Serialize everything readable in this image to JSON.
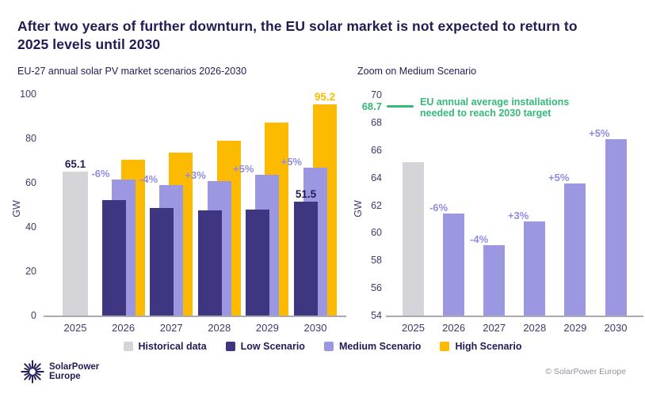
{
  "page": {
    "title": "After two years of further downturn, the EU solar market is not expected to return to 2025 levels until 2030",
    "footer_copyright": "© SolarPower Europe",
    "logo_text_line1": "SolarPower",
    "logo_text_line2": "Europe"
  },
  "colors": {
    "navy_text": "#201c54",
    "historical": "#d5d4d8",
    "low": "#3e3680",
    "medium": "#9b97e0",
    "high": "#fcba00",
    "green": "#35b878",
    "pct_label": "#8f8ce2",
    "axis_line": "#a9aab4",
    "tick_text": "#3d3a6a",
    "muted_text": "#8f8f9b"
  },
  "chart_data": [
    {
      "type": "bar",
      "title": "EU-27 annual solar PV market scenarios 2026-2030",
      "ylabel": "GW",
      "ylim": [
        0,
        100
      ],
      "yticks": [
        0,
        20,
        40,
        60,
        80,
        100
      ],
      "grid": false,
      "categories": [
        "2025",
        "2026",
        "2027",
        "2028",
        "2029",
        "2030"
      ],
      "series": [
        {
          "name": "Historical data",
          "color": "#d5d4d8",
          "values": [
            65.1,
            null,
            null,
            null,
            null,
            null
          ],
          "labels": {
            "0": "65.1"
          },
          "label_color": "#201c54"
        },
        {
          "name": "Low Scenario",
          "color": "#3e3680",
          "values": [
            null,
            52,
            48.5,
            47.5,
            48,
            51.5
          ],
          "labels": {
            "5": "51.5"
          },
          "label_color": "#201c54"
        },
        {
          "name": "Medium Scenario",
          "color": "#9b97e0",
          "values": [
            null,
            61.4,
            59.1,
            60.8,
            63.6,
            66.8
          ]
        },
        {
          "name": "High Scenario",
          "color": "#fcba00",
          "values": [
            null,
            70.5,
            73.5,
            79,
            87,
            95.2
          ],
          "labels": {
            "5": "95.2"
          },
          "label_color": "#fcba00"
        }
      ],
      "pct_labels": {
        "2026": "-6%",
        "2027": "-4%",
        "2028": "+3%",
        "2029": "+5%",
        "2030": "+5%"
      }
    },
    {
      "type": "bar",
      "title": "Zoom on Medium Scenario",
      "ylabel": "GW",
      "ylim": [
        54,
        70
      ],
      "yticks": [
        54,
        56,
        58,
        60,
        62,
        64,
        66,
        68,
        70
      ],
      "grid": false,
      "categories": [
        "2025",
        "2026",
        "2027",
        "2028",
        "2029",
        "2030"
      ],
      "series": [
        {
          "name": "Historical data",
          "color": "#d5d4d8",
          "values": [
            65.1,
            null,
            null,
            null,
            null,
            null
          ]
        },
        {
          "name": "Medium Scenario",
          "color": "#9b97e0",
          "values": [
            null,
            61.4,
            59.1,
            60.8,
            63.6,
            66.8
          ]
        }
      ],
      "pct_labels": {
        "2026": "-6%",
        "2027": "-4%",
        "2028": "+3%",
        "2029": "+5%",
        "2030": "+5%"
      },
      "target_line": {
        "value": 68.7,
        "label": "68.7",
        "text": "EU annual average installations needed to reach 2030 target",
        "color": "#35b878"
      }
    }
  ],
  "legend": {
    "items": [
      {
        "label": "Historical data",
        "color": "#d5d4d8"
      },
      {
        "label": "Low Scenario",
        "color": "#3e3680"
      },
      {
        "label": "Medium Scenario",
        "color": "#9b97e0"
      },
      {
        "label": "High Scenario",
        "color": "#fcba00"
      }
    ]
  }
}
